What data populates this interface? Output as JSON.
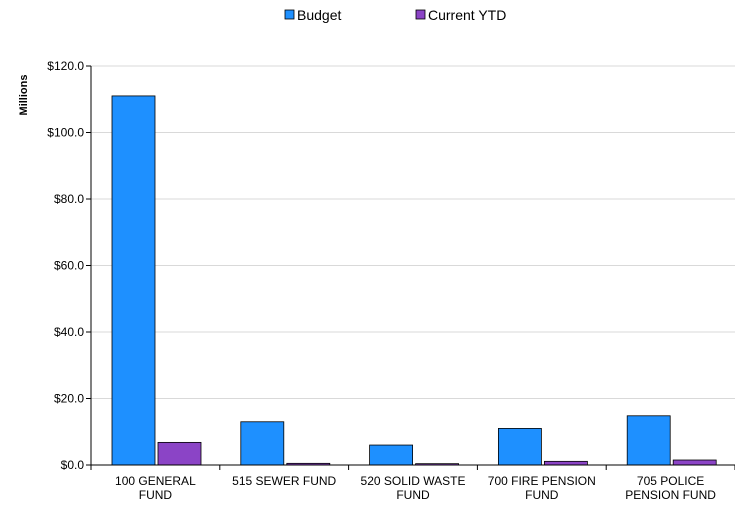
{
  "chart_data": {
    "type": "bar",
    "title": "",
    "xlabel": "",
    "ylabel": "Millions",
    "ylim": [
      0,
      120
    ],
    "ytick_values": [
      0,
      20,
      40,
      60,
      80,
      100,
      120
    ],
    "ytick_labels": [
      "$0.0",
      "$20.0",
      "$40.0",
      "$60.0",
      "$80.0",
      "$100.0",
      "$120.0"
    ],
    "grid": true,
    "legend_position": "top-center",
    "categories": [
      [
        "100 GENERAL",
        "FUND"
      ],
      [
        "515 SEWER FUND"
      ],
      [
        "520 SOLID  WASTE",
        "FUND"
      ],
      [
        "700 FIRE  PENSION",
        "FUND"
      ],
      [
        "705 POLICE",
        "PENSION FUND"
      ]
    ],
    "series": [
      {
        "name": "Budget",
        "color": "#1E90FF",
        "values": [
          111.0,
          13.0,
          6.0,
          11.0,
          14.8
        ]
      },
      {
        "name": "Current YTD",
        "color": "#8B44C6",
        "values": [
          6.8,
          0.5,
          0.4,
          1.1,
          1.5
        ]
      }
    ]
  }
}
